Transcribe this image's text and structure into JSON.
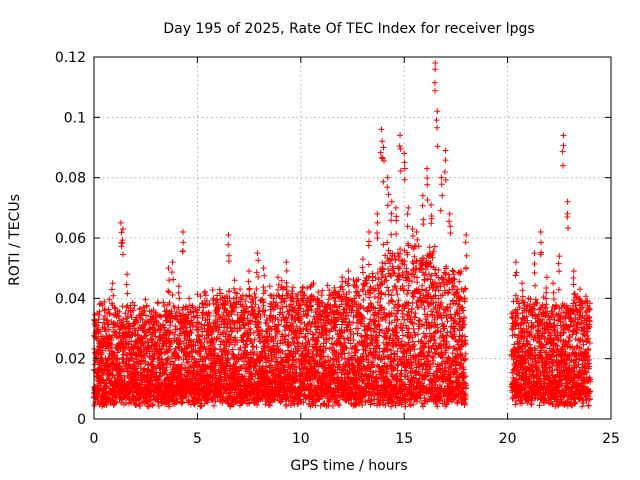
{
  "chart_data": {
    "type": "scatter",
    "title": "Day 195 of 2025, Rate Of TEC Index for receiver lpgs",
    "xlabel": "GPS time / hours",
    "ylabel": "ROTI / TECUs",
    "xlim": [
      0,
      25
    ],
    "ylim": [
      0,
      0.12
    ],
    "xticks": [
      0,
      5,
      10,
      15,
      20,
      25
    ],
    "yticks": [
      0,
      0.02,
      0.04,
      0.06,
      0.08,
      0.1,
      0.12
    ],
    "xtick_labels": [
      "0",
      "5",
      "10",
      "15",
      "20",
      "25"
    ],
    "ytick_labels": [
      "0",
      "0.02",
      "0.04",
      "0.06",
      "0.08",
      "0.1",
      "0.12"
    ],
    "grid": true,
    "marker": "+",
    "color": "#ff0000",
    "series": [
      {
        "name": "ROTI",
        "coverage_hours": [
          [
            0.0,
            18.0
          ],
          [
            20.2,
            24.0
          ]
        ],
        "x": [
          0.2,
          0.5,
          0.9,
          1.3,
          1.4,
          1.6,
          2.0,
          2.3,
          2.8,
          3.2,
          3.5,
          3.6,
          3.8,
          4.1,
          4.3,
          4.6,
          5.0,
          5.5,
          5.9,
          6.3,
          6.5,
          6.8,
          7.2,
          7.5,
          7.9,
          8.2,
          8.5,
          8.9,
          9.3,
          9.6,
          10.0,
          10.3,
          10.8,
          11.2,
          11.6,
          12.0,
          12.3,
          12.7,
          13.0,
          13.3,
          13.7,
          13.9,
          14.0,
          14.2,
          14.4,
          14.6,
          14.8,
          15.0,
          15.2,
          15.4,
          15.6,
          15.9,
          16.1,
          16.3,
          16.5,
          16.6,
          16.8,
          17.0,
          17.2,
          17.4,
          17.7,
          18.0,
          20.4,
          20.7,
          21.0,
          21.3,
          21.6,
          21.9,
          22.2,
          22.5,
          22.7,
          22.9,
          23.2,
          23.5,
          23.8
        ],
        "y": [
          0.032,
          0.036,
          0.045,
          0.065,
          0.063,
          0.048,
          0.033,
          0.03,
          0.028,
          0.031,
          0.036,
          0.05,
          0.052,
          0.044,
          0.062,
          0.04,
          0.036,
          0.033,
          0.038,
          0.04,
          0.061,
          0.046,
          0.041,
          0.049,
          0.055,
          0.05,
          0.044,
          0.047,
          0.052,
          0.04,
          0.042,
          0.04,
          0.038,
          0.037,
          0.04,
          0.047,
          0.049,
          0.046,
          0.053,
          0.062,
          0.068,
          0.096,
          0.09,
          0.08,
          0.072,
          0.07,
          0.094,
          0.088,
          0.07,
          0.063,
          0.062,
          0.074,
          0.083,
          0.071,
          0.118,
          0.102,
          0.08,
          0.089,
          0.068,
          0.048,
          0.04,
          0.061,
          0.052,
          0.045,
          0.04,
          0.055,
          0.062,
          0.047,
          0.045,
          0.054,
          0.094,
          0.072,
          0.049,
          0.043,
          0.039
        ]
      }
    ]
  }
}
